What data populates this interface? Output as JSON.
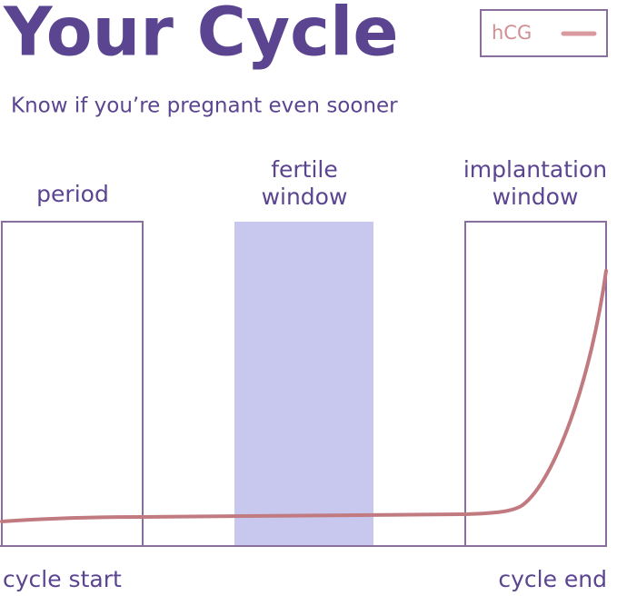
{
  "header": {
    "title": "Your Cycle",
    "subtitle": "Know if you’re pregnant even sooner"
  },
  "legend": {
    "label": "hCG"
  },
  "regions": [
    {
      "lines": [
        "period"
      ]
    },
    {
      "lines": [
        "fertile",
        "window"
      ]
    },
    {
      "lines": [
        "implantation",
        "window"
      ]
    }
  ],
  "footer": {
    "start": "cycle start",
    "end": "cycle end"
  }
}
